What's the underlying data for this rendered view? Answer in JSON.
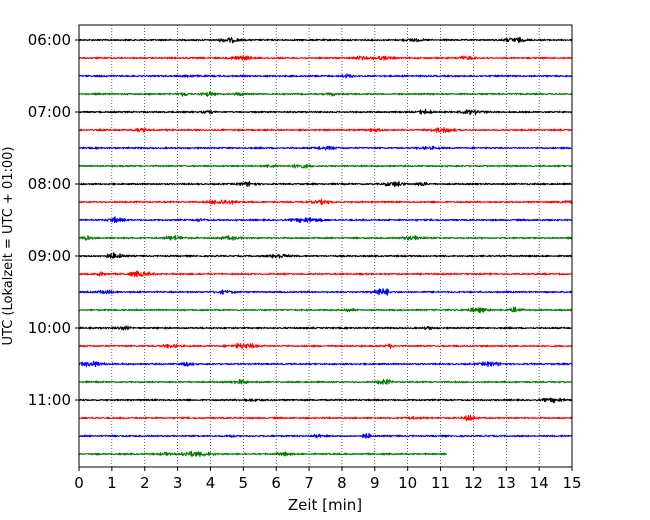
{
  "chart_data": {
    "type": "line",
    "title": "",
    "xlabel": "Zeit  [min]",
    "ylabel": "UTC (Lokalzeit = UTC + 01:00)",
    "xlim": [
      0,
      15
    ],
    "x_ticks": [
      "0",
      "1",
      "2",
      "3",
      "4",
      "5",
      "6",
      "7",
      "8",
      "9",
      "10",
      "11",
      "12",
      "13",
      "14",
      "15"
    ],
    "y_ticks": [
      "06:00",
      "07:00",
      "08:00",
      "09:00",
      "10:00",
      "11:00"
    ],
    "grid": "vertical dotted",
    "row_minutes": 15,
    "start_time": "06:00",
    "colors_cycle": [
      "#000000",
      "#ff0000",
      "#0000ff",
      "#007f00"
    ],
    "traces": [
      {
        "start": "06:00",
        "color": "#000000",
        "end_min": 15
      },
      {
        "start": "06:15",
        "color": "#ff0000",
        "end_min": 15
      },
      {
        "start": "06:30",
        "color": "#0000ff",
        "end_min": 15
      },
      {
        "start": "06:45",
        "color": "#007f00",
        "end_min": 15
      },
      {
        "start": "07:00",
        "color": "#000000",
        "end_min": 15
      },
      {
        "start": "07:15",
        "color": "#ff0000",
        "end_min": 15
      },
      {
        "start": "07:30",
        "color": "#0000ff",
        "end_min": 15
      },
      {
        "start": "07:45",
        "color": "#007f00",
        "end_min": 15
      },
      {
        "start": "08:00",
        "color": "#000000",
        "end_min": 15
      },
      {
        "start": "08:15",
        "color": "#ff0000",
        "end_min": 15
      },
      {
        "start": "08:30",
        "color": "#0000ff",
        "end_min": 15
      },
      {
        "start": "08:45",
        "color": "#007f00",
        "end_min": 15
      },
      {
        "start": "09:00",
        "color": "#000000",
        "end_min": 15
      },
      {
        "start": "09:15",
        "color": "#ff0000",
        "end_min": 15
      },
      {
        "start": "09:30",
        "color": "#0000ff",
        "end_min": 15
      },
      {
        "start": "09:45",
        "color": "#007f00",
        "end_min": 15
      },
      {
        "start": "10:00",
        "color": "#000000",
        "end_min": 15
      },
      {
        "start": "10:15",
        "color": "#ff0000",
        "end_min": 15
      },
      {
        "start": "10:30",
        "color": "#0000ff",
        "end_min": 15
      },
      {
        "start": "10:45",
        "color": "#007f00",
        "end_min": 15
      },
      {
        "start": "11:00",
        "color": "#000000",
        "end_min": 15
      },
      {
        "start": "11:15",
        "color": "#ff0000",
        "end_min": 15
      },
      {
        "start": "11:30",
        "color": "#0000ff",
        "end_min": 15
      },
      {
        "start": "11:45",
        "color": "#007f00",
        "end_min": 11.2
      }
    ]
  }
}
